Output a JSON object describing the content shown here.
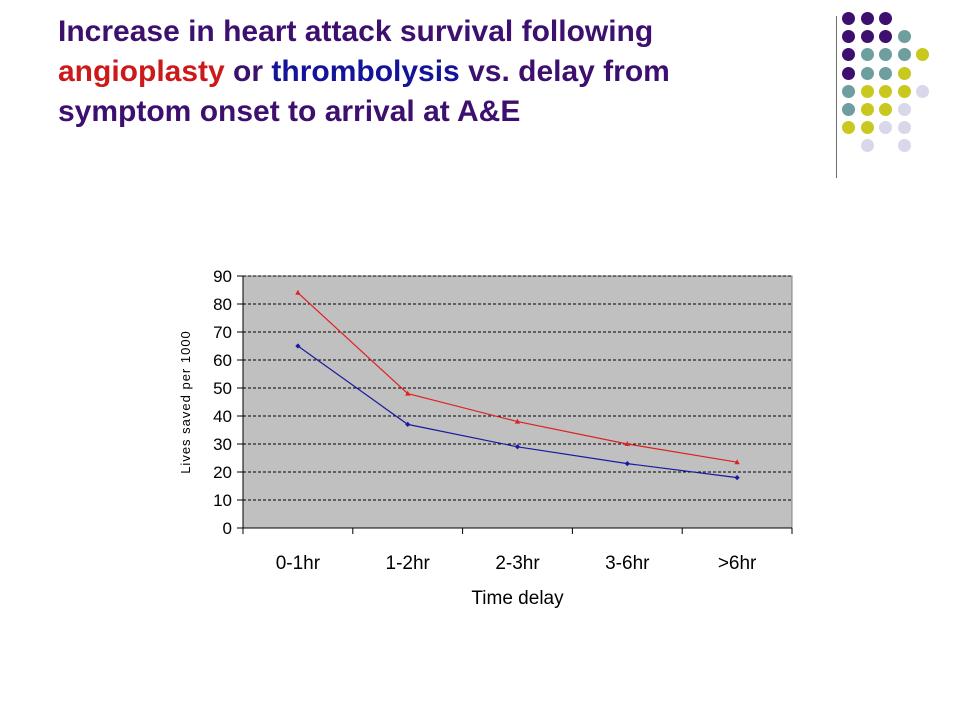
{
  "title": {
    "line1": "Increase in heart attack survival following",
    "angioplasty": "angioplasty",
    "or": " or ",
    "thrombolysis": "thrombolysis",
    "line2_rest": " vs. delay from",
    "line3": "symptom onset to arrival at A&E"
  },
  "colors": {
    "title_purple": "#3d0f6e",
    "title_red": "#cc1a1a",
    "title_blue": "#14149a",
    "plot_background": "#c0c0c0",
    "dot_palette": {
      "purple": "#3d0f6e",
      "teal": "#6e9e9e",
      "yellow": "#c8c81e",
      "lavender": "#d8d8ea"
    }
  },
  "decoration": {
    "dot_rows": [
      [
        "purple",
        "purple",
        "purple",
        "",
        ""
      ],
      [
        "purple",
        "purple",
        "purple",
        "teal",
        ""
      ],
      [
        "purple",
        "teal",
        "teal",
        "teal",
        "yellow"
      ],
      [
        "purple",
        "teal",
        "teal",
        "yellow",
        ""
      ],
      [
        "teal",
        "yellow",
        "yellow",
        "yellow",
        "lavender"
      ],
      [
        "teal",
        "yellow",
        "yellow",
        "lavender",
        ""
      ],
      [
        "yellow",
        "yellow",
        "lavender",
        "lavender",
        ""
      ],
      [
        "",
        "lavender",
        "",
        "lavender",
        ""
      ]
    ]
  },
  "chart_data": {
    "type": "line",
    "categories": [
      "0-1hr",
      "1-2hr",
      "2-3hr",
      "3-6hr",
      ">6hr"
    ],
    "series": [
      {
        "values": [
          84,
          48,
          38,
          30,
          23.5
        ],
        "color": "#e02020",
        "marker": "triangle"
      },
      {
        "values": [
          65,
          37,
          29,
          23,
          18
        ],
        "color": "#1a1aa0",
        "marker": "diamond"
      }
    ],
    "xlabel": "Time delay",
    "ylabel": "Lives saved per 1000",
    "ylim": [
      0,
      90
    ],
    "yticks": [
      0,
      10,
      20,
      30,
      40,
      50,
      60,
      70,
      80,
      90
    ],
    "grid": "horizontal dashed",
    "legend": "none"
  }
}
